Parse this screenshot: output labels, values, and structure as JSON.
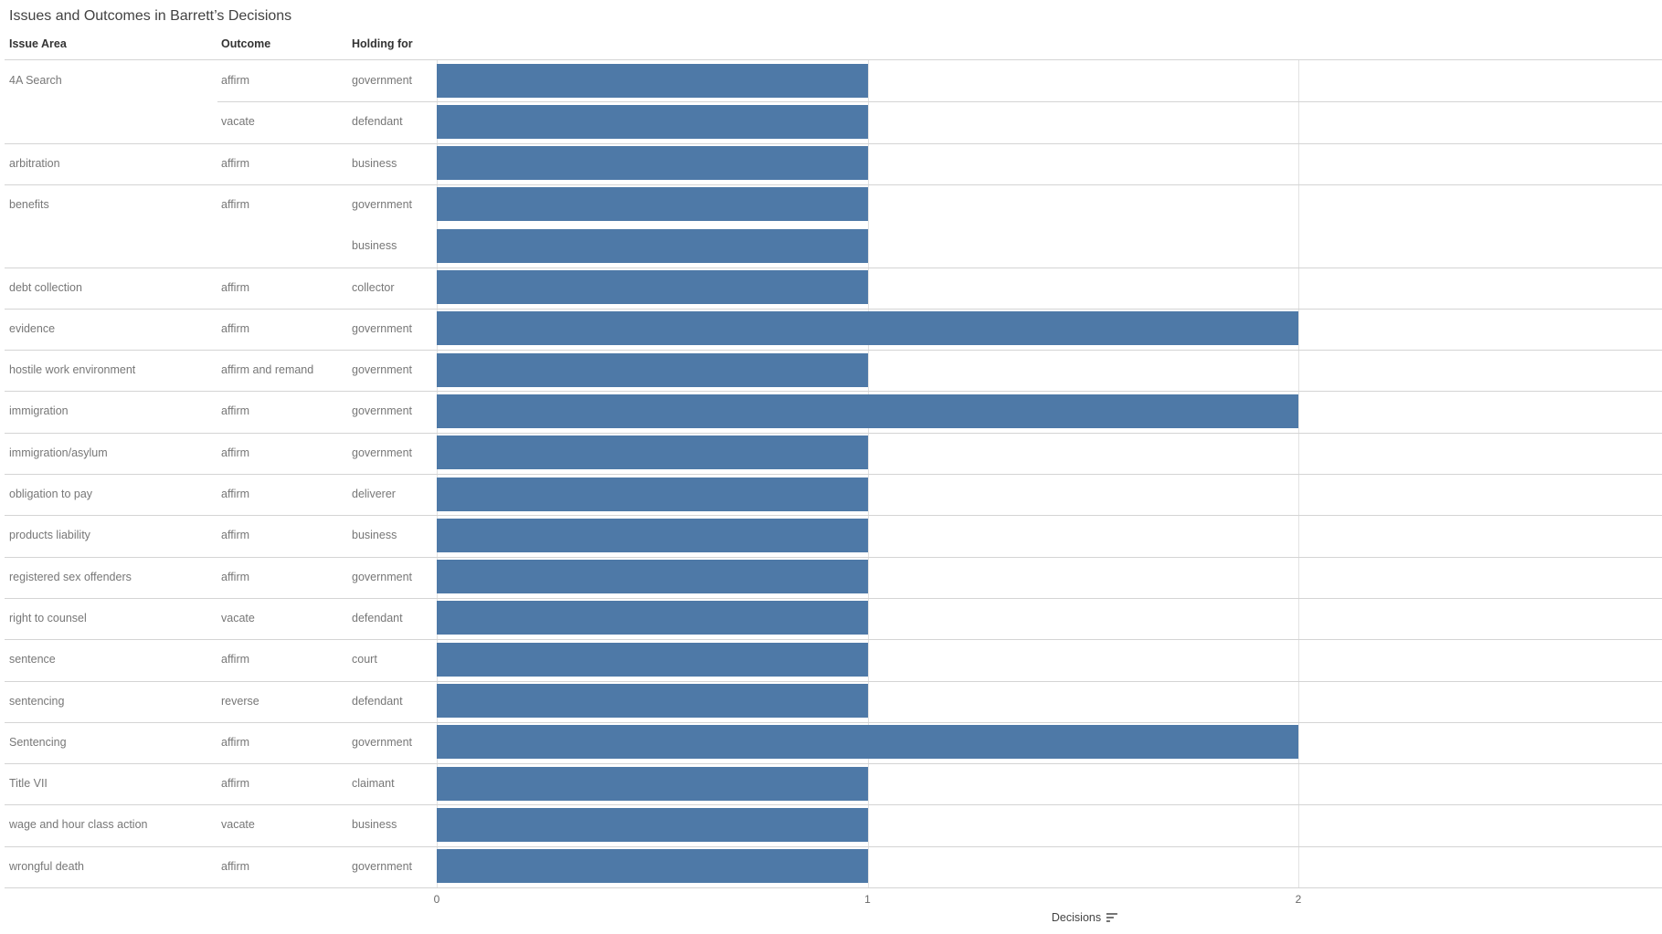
{
  "title": "Issues and Outcomes in Barrett’s Decisions",
  "columns": [
    "Issue Area",
    "Outcome",
    "Holding for"
  ],
  "axis": {
    "label": "Decisions",
    "ticks": [
      0,
      1,
      2
    ],
    "sort_icon": "sort-descending-icon"
  },
  "colors": {
    "bar": "#4e79a7",
    "separator": "#d4d4d4",
    "gridline": "#e2e2e2",
    "title_text": "#424242",
    "header_text": "#333333",
    "row_text": "#777777",
    "tick_text": "#686868"
  },
  "chart_data": {
    "type": "bar",
    "orientation": "horizontal",
    "title": "Issues and Outcomes in Barrett’s Decisions",
    "xlabel": "Decisions",
    "ylabel": "",
    "xlim": [
      0,
      2.84
    ],
    "xticks": [
      0,
      1,
      2
    ],
    "grid": "vertical-ticks-only",
    "columns": [
      "Issue Area",
      "Outcome",
      "Holding for"
    ],
    "rows": [
      {
        "issue": "4A Search",
        "outcome": "affirm",
        "holding": "government",
        "decisions": 1,
        "separator": "none"
      },
      {
        "issue": "",
        "outcome": "vacate",
        "holding": "defendant",
        "decisions": 1,
        "separator": "outcome"
      },
      {
        "issue": "arbitration",
        "outcome": "affirm",
        "holding": "business",
        "decisions": 1,
        "separator": "full"
      },
      {
        "issue": "benefits",
        "outcome": "affirm",
        "holding": "government",
        "decisions": 1,
        "separator": "full"
      },
      {
        "issue": "",
        "outcome": "",
        "holding": "business",
        "decisions": 1,
        "separator": "none"
      },
      {
        "issue": "debt collection",
        "outcome": "affirm",
        "holding": "collector",
        "decisions": 1,
        "separator": "full"
      },
      {
        "issue": "evidence",
        "outcome": "affirm",
        "holding": "government",
        "decisions": 2,
        "separator": "full"
      },
      {
        "issue": "hostile work environment",
        "outcome": "affirm and remand",
        "holding": "government",
        "decisions": 1,
        "separator": "full"
      },
      {
        "issue": "immigration",
        "outcome": "affirm",
        "holding": "government",
        "decisions": 2,
        "separator": "full"
      },
      {
        "issue": "immigration/asylum",
        "outcome": "affirm",
        "holding": "government",
        "decisions": 1,
        "separator": "full"
      },
      {
        "issue": "obligation to pay",
        "outcome": "affirm",
        "holding": "deliverer",
        "decisions": 1,
        "separator": "full"
      },
      {
        "issue": "products liability",
        "outcome": "affirm",
        "holding": "business",
        "decisions": 1,
        "separator": "full"
      },
      {
        "issue": "registered sex offenders",
        "outcome": "affirm",
        "holding": "government",
        "decisions": 1,
        "separator": "full"
      },
      {
        "issue": "right to counsel",
        "outcome": "vacate",
        "holding": "defendant",
        "decisions": 1,
        "separator": "full"
      },
      {
        "issue": "sentence",
        "outcome": "affirm",
        "holding": "court",
        "decisions": 1,
        "separator": "full"
      },
      {
        "issue": "sentencing",
        "outcome": "reverse",
        "holding": "defendant",
        "decisions": 1,
        "separator": "full"
      },
      {
        "issue": "Sentencing",
        "outcome": "affirm",
        "holding": "government",
        "decisions": 2,
        "separator": "full"
      },
      {
        "issue": "Title VII",
        "outcome": "affirm",
        "holding": "claimant",
        "decisions": 1,
        "separator": "full"
      },
      {
        "issue": "wage and hour class action",
        "outcome": "vacate",
        "holding": "business",
        "decisions": 1,
        "separator": "full"
      },
      {
        "issue": "wrongful death",
        "outcome": "affirm",
        "holding": "government",
        "decisions": 1,
        "separator": "full"
      }
    ]
  }
}
